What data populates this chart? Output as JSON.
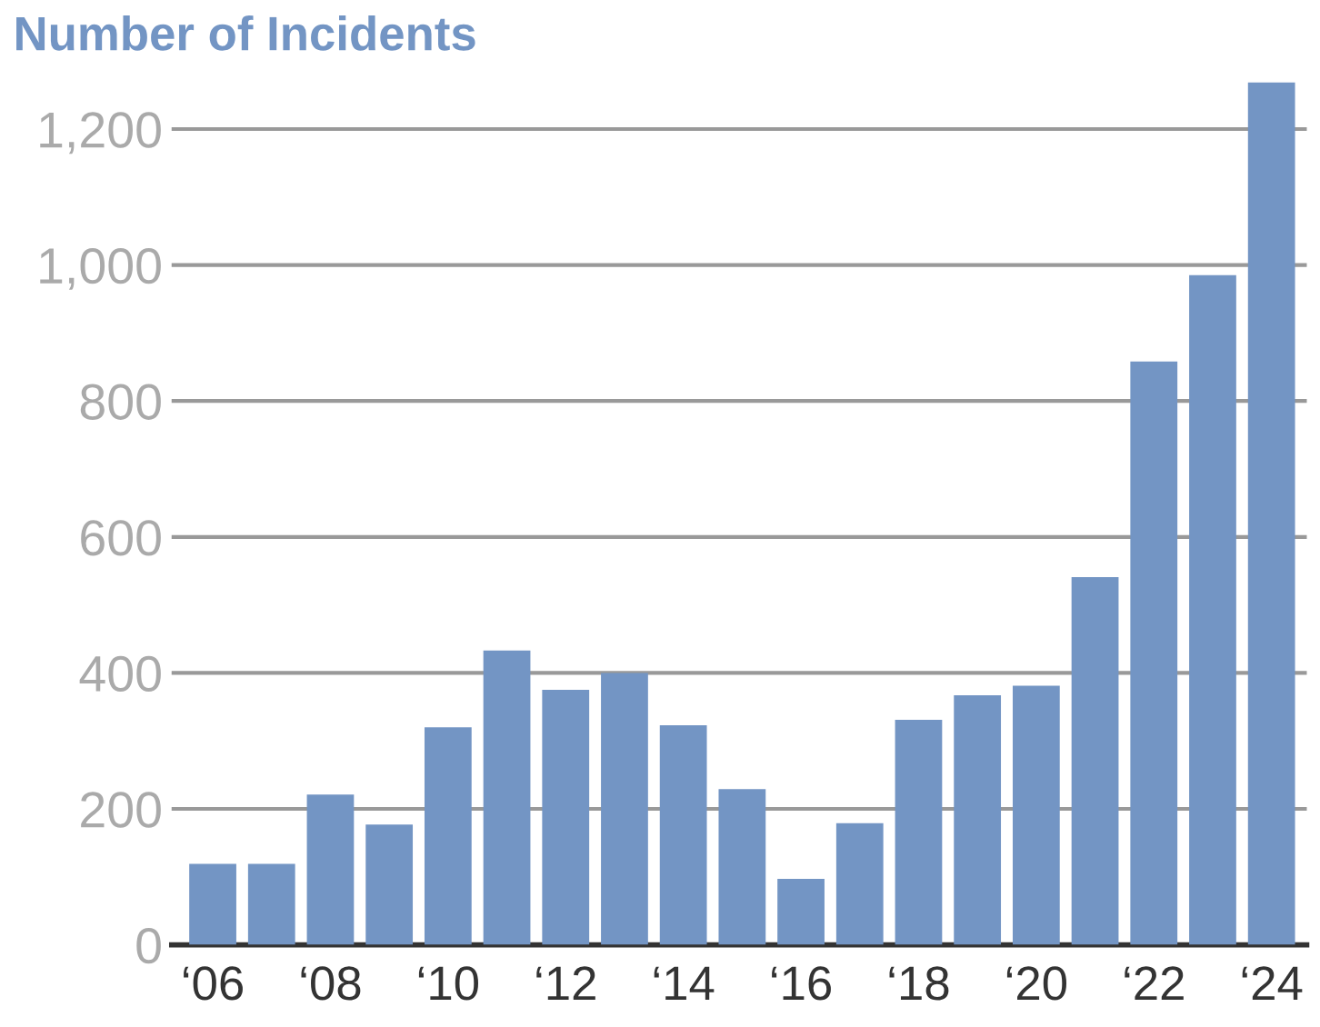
{
  "chart_data": {
    "type": "bar",
    "title": "Number of Incidents",
    "categories": [
      "‘06",
      null,
      "‘08",
      null,
      "‘10",
      null,
      "‘12",
      null,
      "‘14",
      null,
      "‘16",
      null,
      "‘18",
      null,
      "‘20",
      null,
      "‘22",
      null,
      "‘24"
    ],
    "values": [
      119,
      119,
      221,
      177,
      320,
      433,
      375,
      400,
      323,
      229,
      97,
      179,
      331,
      367,
      381,
      541,
      858,
      985,
      1269
    ],
    "color": "#7395c4",
    "ylim": [
      0,
      1269
    ],
    "yticks": [
      0,
      200,
      400,
      600,
      800,
      {
        "value": 1000,
        "label": "1,000"
      },
      {
        "value": 1200,
        "label": "1,200"
      }
    ],
    "grid": "y"
  }
}
